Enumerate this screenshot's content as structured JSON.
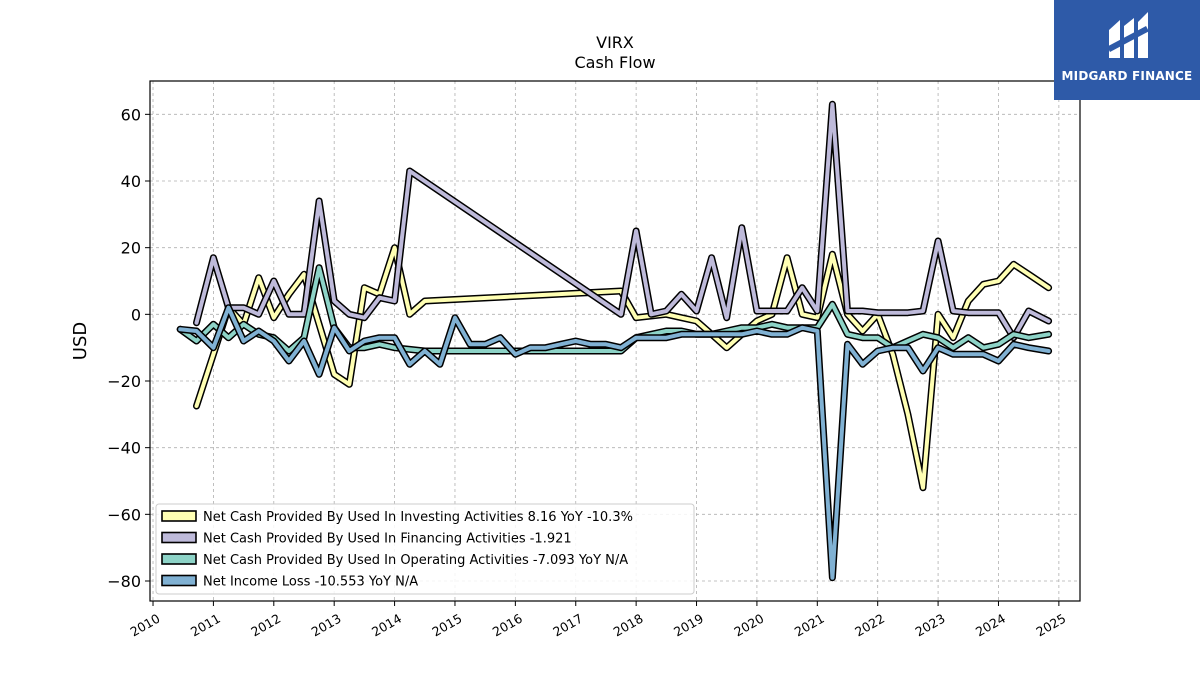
{
  "logo": {
    "text": "MIDGARD FINANCE",
    "color": "#2e5aa8"
  },
  "chart_data": {
    "type": "line",
    "title": "VIRX",
    "subtitle": "Cash Flow",
    "ylabel": "USD",
    "ylim": [
      -86,
      70
    ],
    "yticks": [
      60,
      40,
      20,
      0,
      -20,
      -40,
      -60,
      -80
    ],
    "ytick_labels": [
      "60",
      "40",
      "20",
      "0",
      "−20",
      "−40",
      "−60",
      "−80"
    ],
    "xlim": [
      2009.95,
      2025.35
    ],
    "xticks": [
      2010,
      2011,
      2012,
      2013,
      2014,
      2015,
      2016,
      2017,
      2018,
      2019,
      2020,
      2021,
      2022,
      2023,
      2024,
      2025
    ],
    "grid": true,
    "legend_position": "lower-left",
    "series": [
      {
        "name": "Net Cash Provided By Used In Investing Activities",
        "legend_label": "Net Cash Provided By Used In Investing Activities  8.16 YoY -10.3%",
        "color": "#ffffb3",
        "points": [
          [
            2010.72,
            -27.5
          ],
          [
            2011.0,
            -12
          ],
          [
            2011.25,
            2
          ],
          [
            2011.5,
            -3
          ],
          [
            2011.75,
            11
          ],
          [
            2012.0,
            -1
          ],
          [
            2012.25,
            6
          ],
          [
            2012.5,
            12
          ],
          [
            2012.75,
            -3
          ],
          [
            2013.0,
            -18
          ],
          [
            2013.25,
            -21
          ],
          [
            2013.5,
            8
          ],
          [
            2013.75,
            6
          ],
          [
            2014.0,
            20
          ],
          [
            2014.25,
            0
          ],
          [
            2014.5,
            4
          ],
          [
            2017.75,
            7
          ],
          [
            2018.0,
            -1
          ],
          [
            2018.5,
            0
          ],
          [
            2018.75,
            -1
          ],
          [
            2019.0,
            -2
          ],
          [
            2019.25,
            -6
          ],
          [
            2019.5,
            -10
          ],
          [
            2019.75,
            -6
          ],
          [
            2020.0,
            -2
          ],
          [
            2020.25,
            0
          ],
          [
            2020.5,
            17
          ],
          [
            2020.75,
            0
          ],
          [
            2021.0,
            -1
          ],
          [
            2021.25,
            18
          ],
          [
            2021.5,
            0
          ],
          [
            2021.75,
            -5
          ],
          [
            2022.0,
            0
          ],
          [
            2022.25,
            -12
          ],
          [
            2022.5,
            -30
          ],
          [
            2022.75,
            -52
          ],
          [
            2023.0,
            0
          ],
          [
            2023.25,
            -7
          ],
          [
            2023.5,
            4
          ],
          [
            2023.75,
            9
          ],
          [
            2024.0,
            10
          ],
          [
            2024.25,
            15
          ],
          [
            2024.5,
            12
          ],
          [
            2024.83,
            8
          ]
        ]
      },
      {
        "name": "Net Cash Provided By Used In Financing Activities",
        "legend_label": "Net Cash Provided By Used In Financing Activities  -1.921",
        "color": "#bebada",
        "points": [
          [
            2010.72,
            -2.5
          ],
          [
            2011.0,
            17
          ],
          [
            2011.25,
            2
          ],
          [
            2011.5,
            2
          ],
          [
            2011.75,
            0
          ],
          [
            2012.0,
            10
          ],
          [
            2012.25,
            0
          ],
          [
            2012.5,
            0
          ],
          [
            2012.75,
            34
          ],
          [
            2013.0,
            4
          ],
          [
            2013.25,
            0
          ],
          [
            2013.5,
            -1
          ],
          [
            2013.75,
            5
          ],
          [
            2014.0,
            4
          ],
          [
            2014.25,
            43
          ],
          [
            2017.75,
            0
          ],
          [
            2018.0,
            25
          ],
          [
            2018.25,
            0
          ],
          [
            2018.5,
            1
          ],
          [
            2018.75,
            6
          ],
          [
            2019.0,
            1
          ],
          [
            2019.25,
            17
          ],
          [
            2019.5,
            -1
          ],
          [
            2019.75,
            26
          ],
          [
            2020.0,
            1
          ],
          [
            2020.25,
            1
          ],
          [
            2020.5,
            1
          ],
          [
            2020.75,
            8
          ],
          [
            2021.0,
            1
          ],
          [
            2021.25,
            63
          ],
          [
            2021.5,
            1
          ],
          [
            2021.75,
            1
          ],
          [
            2022.0,
            0.5
          ],
          [
            2022.5,
            0.5
          ],
          [
            2022.75,
            1
          ],
          [
            2023.0,
            22
          ],
          [
            2023.25,
            1
          ],
          [
            2023.5,
            0.5
          ],
          [
            2023.75,
            0.5
          ],
          [
            2024.0,
            0.5
          ],
          [
            2024.25,
            -7
          ],
          [
            2024.5,
            1
          ],
          [
            2024.83,
            -2
          ]
        ]
      },
      {
        "name": "Net Cash Provided By Used In Operating Activities",
        "legend_label": "Net Cash Provided By Used In Operating Activities  -7.093 YoY N/A",
        "color": "#8dd3c7",
        "points": [
          [
            2010.45,
            -4.5
          ],
          [
            2010.72,
            -8
          ],
          [
            2011.0,
            -3
          ],
          [
            2011.25,
            -7
          ],
          [
            2011.5,
            -3
          ],
          [
            2011.75,
            -6
          ],
          [
            2012.0,
            -7
          ],
          [
            2012.25,
            -11
          ],
          [
            2012.5,
            -7
          ],
          [
            2012.75,
            14
          ],
          [
            2013.0,
            -4
          ],
          [
            2013.25,
            -10
          ],
          [
            2013.5,
            -10
          ],
          [
            2013.75,
            -9
          ],
          [
            2014.0,
            -10
          ],
          [
            2014.5,
            -11
          ],
          [
            2017.75,
            -11
          ],
          [
            2018.0,
            -7
          ],
          [
            2018.25,
            -6
          ],
          [
            2018.5,
            -5
          ],
          [
            2018.75,
            -5
          ],
          [
            2019.0,
            -6
          ],
          [
            2019.25,
            -6
          ],
          [
            2019.5,
            -5
          ],
          [
            2019.75,
            -4
          ],
          [
            2020.0,
            -4
          ],
          [
            2020.25,
            -3
          ],
          [
            2020.5,
            -4
          ],
          [
            2020.75,
            -4
          ],
          [
            2021.0,
            -4
          ],
          [
            2021.25,
            3
          ],
          [
            2021.5,
            -6
          ],
          [
            2021.75,
            -7
          ],
          [
            2022.0,
            -7
          ],
          [
            2022.25,
            -10
          ],
          [
            2022.5,
            -8
          ],
          [
            2022.75,
            -6
          ],
          [
            2023.0,
            -7
          ],
          [
            2023.25,
            -10
          ],
          [
            2023.5,
            -7
          ],
          [
            2023.75,
            -10
          ],
          [
            2024.0,
            -9
          ],
          [
            2024.25,
            -6
          ],
          [
            2024.5,
            -7
          ],
          [
            2024.83,
            -6
          ]
        ]
      },
      {
        "name": "Net Income Loss",
        "legend_label": "Net Income Loss  -10.553 YoY N/A",
        "color": "#80b1d3",
        "points": [
          [
            2010.45,
            -4.5
          ],
          [
            2010.72,
            -5
          ],
          [
            2011.0,
            -10
          ],
          [
            2011.25,
            2
          ],
          [
            2011.5,
            -8
          ],
          [
            2011.75,
            -5
          ],
          [
            2012.0,
            -8
          ],
          [
            2012.25,
            -14
          ],
          [
            2012.5,
            -8
          ],
          [
            2012.75,
            -18
          ],
          [
            2013.0,
            -4
          ],
          [
            2013.25,
            -11
          ],
          [
            2013.5,
            -8
          ],
          [
            2013.75,
            -7
          ],
          [
            2014.0,
            -7
          ],
          [
            2014.25,
            -15
          ],
          [
            2014.5,
            -11
          ],
          [
            2014.75,
            -15
          ],
          [
            2015.0,
            -1
          ],
          [
            2015.25,
            -9
          ],
          [
            2015.5,
            -9
          ],
          [
            2015.75,
            -7
          ],
          [
            2016.0,
            -12
          ],
          [
            2016.25,
            -10
          ],
          [
            2016.5,
            -10
          ],
          [
            2016.75,
            -9
          ],
          [
            2017.0,
            -8
          ],
          [
            2017.25,
            -9
          ],
          [
            2017.5,
            -9
          ],
          [
            2017.75,
            -10
          ],
          [
            2018.0,
            -7
          ],
          [
            2018.25,
            -7
          ],
          [
            2018.5,
            -7
          ],
          [
            2018.75,
            -6
          ],
          [
            2019.0,
            -6
          ],
          [
            2019.25,
            -6
          ],
          [
            2019.5,
            -6
          ],
          [
            2019.75,
            -6
          ],
          [
            2020.0,
            -5
          ],
          [
            2020.25,
            -6
          ],
          [
            2020.5,
            -6
          ],
          [
            2020.75,
            -4
          ],
          [
            2021.0,
            -5
          ],
          [
            2021.25,
            -79
          ],
          [
            2021.5,
            -9
          ],
          [
            2021.75,
            -15
          ],
          [
            2022.0,
            -11
          ],
          [
            2022.25,
            -10
          ],
          [
            2022.5,
            -10
          ],
          [
            2022.75,
            -17
          ],
          [
            2023.0,
            -10
          ],
          [
            2023.25,
            -12
          ],
          [
            2023.5,
            -12
          ],
          [
            2023.75,
            -12
          ],
          [
            2024.0,
            -14
          ],
          [
            2024.25,
            -9
          ],
          [
            2024.5,
            -10
          ],
          [
            2024.83,
            -11
          ]
        ]
      }
    ]
  }
}
